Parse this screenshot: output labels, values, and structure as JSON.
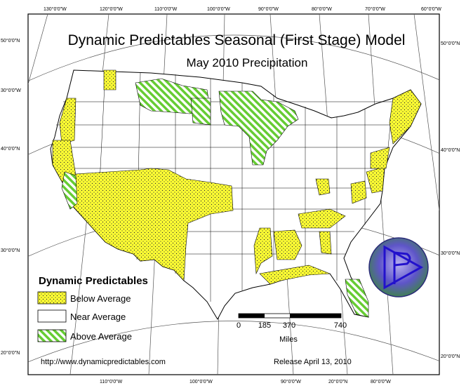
{
  "map": {
    "title": "Dynamic Predictables Seasonal (First Stage) Model",
    "subtitle": "May 2010 Precipitation",
    "legend": {
      "title": "Dynamic Predictables",
      "items": [
        {
          "label": "Below Average",
          "fill": "#ffff33",
          "pattern": "dots"
        },
        {
          "label": "Near Average",
          "fill": "#ffffff",
          "pattern": "none"
        },
        {
          "label": "Above Average",
          "fill": "#66cc33",
          "pattern": "hatch"
        }
      ]
    },
    "scale_bar": {
      "ticks": [
        "0",
        "185",
        "370",
        "740"
      ],
      "unit": "Miles"
    },
    "footer": {
      "url": "http://www.dynamicpredictables.com",
      "release": "Release April 13, 2010"
    },
    "graticule_top": [
      "130°0'0\"W",
      "120°0'0\"W",
      "110°0'0\"W",
      "100°0'0\"W",
      "90°0'0\"W",
      "80°0'0\"W",
      "70°0'0\"W",
      "60°0'0\"W"
    ],
    "graticule_bottom": [
      "110°0'0\"W",
      "100°0'0\"W",
      "90°0'0\"W",
      "20°0'0\"N",
      "80°0'0\"W"
    ],
    "graticule_left": [
      "50°0'0\"N",
      "30°0'0\"W",
      "40°0'0\"N",
      "30°0'0\"N",
      "20°0'0\"N"
    ],
    "graticule_right": [
      "50°0'0\"N",
      "40°0'0\"N",
      "30°0'0\"N",
      "20°0'0\"N"
    ],
    "colors": {
      "below": "#ffff33",
      "near": "#ffffff",
      "above": "#66cc33",
      "logo_circle": "#5a50c8",
      "logo_arrow": "#3322dd"
    },
    "logo": {
      "icon": "dynamic-predictables-logo-icon"
    }
  }
}
